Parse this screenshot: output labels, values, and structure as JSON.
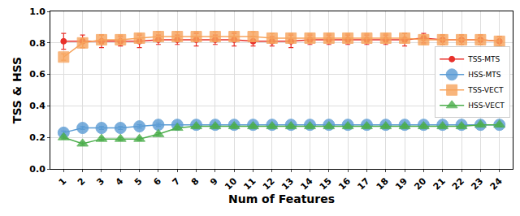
{
  "chart_data": {
    "type": "line",
    "x_label": "Num of Features",
    "y_label": "TSS & HSS",
    "categories": [
      "1",
      "2",
      "3",
      "4",
      "5",
      "6",
      "7",
      "8",
      "9",
      "10",
      "11",
      "12",
      "13",
      "14",
      "15",
      "16",
      "17",
      "18",
      "19",
      "20",
      "21",
      "22",
      "23",
      "24"
    ],
    "ylim": [
      0,
      1.0
    ],
    "yticks": [
      {
        "value": 0,
        "label": "0.0"
      },
      {
        "value": 0.2,
        "label": "0.2"
      },
      {
        "value": 0.4,
        "label": "0.4"
      },
      {
        "value": 0.6,
        "label": "0.6"
      },
      {
        "value": 0.8,
        "label": "0.8"
      },
      {
        "value": 1.0,
        "label": "1.0"
      }
    ],
    "grid": true,
    "legend": "right",
    "series": [
      {
        "name": "TSS-MTS",
        "color": "#e8302a",
        "marker": "circle",
        "line_style": "solid",
        "values": [
          0.81,
          0.81,
          0.81,
          0.81,
          0.81,
          0.82,
          0.82,
          0.82,
          0.82,
          0.82,
          0.81,
          0.81,
          0.81,
          0.82,
          0.82,
          0.82,
          0.82,
          0.82,
          0.82,
          0.83,
          0.82,
          0.82,
          0.82,
          0.81
        ],
        "errors": [
          0.05,
          0.04,
          0.04,
          0.03,
          0.04,
          0.03,
          0.03,
          0.04,
          0.03,
          0.04,
          0.03,
          0.03,
          0.04,
          0.03,
          0.03,
          0.03,
          0.03,
          0.03,
          0.04,
          0.03,
          0.03,
          0.03,
          0.03,
          0.03
        ]
      },
      {
        "name": "HSS-MTS",
        "color": "#5a9bd4",
        "marker": "circle",
        "line_style": "solid",
        "values": [
          0.23,
          0.26,
          0.26,
          0.26,
          0.27,
          0.28,
          0.28,
          0.28,
          0.28,
          0.28,
          0.28,
          0.28,
          0.28,
          0.28,
          0.28,
          0.28,
          0.28,
          0.28,
          0.28,
          0.28,
          0.28,
          0.28,
          0.28,
          0.28
        ],
        "errors": [
          0.01,
          0.01,
          0.01,
          0.01,
          0.01,
          0.01,
          0.01,
          0.01,
          0.01,
          0.01,
          0.01,
          0.01,
          0.01,
          0.01,
          0.01,
          0.01,
          0.01,
          0.01,
          0.01,
          0.01,
          0.01,
          0.01,
          0.01,
          0.01
        ]
      },
      {
        "name": "TSS-VECT",
        "color": "#f7a35c",
        "marker": "square",
        "line_style": "solid",
        "values": [
          0.71,
          0.8,
          0.82,
          0.82,
          0.83,
          0.84,
          0.84,
          0.84,
          0.84,
          0.84,
          0.84,
          0.83,
          0.83,
          0.83,
          0.83,
          0.83,
          0.83,
          0.83,
          0.83,
          0.82,
          0.82,
          0.82,
          0.82,
          0.81
        ],
        "errors": [
          0.02,
          0.03,
          0.03,
          0.03,
          0.03,
          0.03,
          0.03,
          0.03,
          0.03,
          0.03,
          0.03,
          0.03,
          0.03,
          0.03,
          0.03,
          0.03,
          0.03,
          0.03,
          0.03,
          0.03,
          0.03,
          0.03,
          0.03,
          0.03
        ]
      },
      {
        "name": "HSS-VECT",
        "color": "#4cae4c",
        "marker": "triangle-up",
        "line_style": "solid",
        "values": [
          0.2,
          0.16,
          0.19,
          0.19,
          0.19,
          0.22,
          0.26,
          0.27,
          0.27,
          0.27,
          0.27,
          0.27,
          0.27,
          0.27,
          0.27,
          0.27,
          0.27,
          0.27,
          0.27,
          0.27,
          0.27,
          0.27,
          0.28,
          0.28
        ],
        "errors": [
          0.01,
          0.01,
          0.01,
          0.01,
          0.01,
          0.01,
          0.01,
          0.01,
          0.01,
          0.01,
          0.01,
          0.01,
          0.01,
          0.01,
          0.01,
          0.01,
          0.01,
          0.01,
          0.01,
          0.01,
          0.01,
          0.01,
          0.01,
          0.01
        ]
      }
    ]
  }
}
